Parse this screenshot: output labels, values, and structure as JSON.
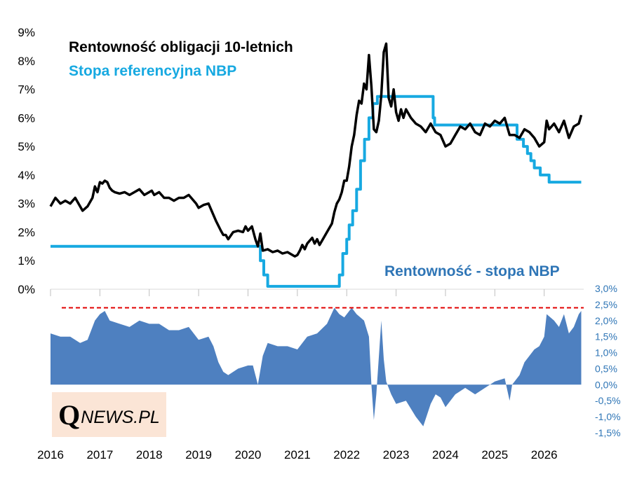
{
  "chart_data": [
    {
      "type": "line",
      "title_lines": [
        "Rentowność obligacji 10-letnich",
        "Stopa referencyjna NBP"
      ],
      "y_ticks": [
        "0%",
        "1%",
        "2%",
        "3%",
        "4%",
        "5%",
        "6%",
        "7%",
        "8%",
        "9%"
      ],
      "ylim": [
        0,
        9
      ],
      "x_ticks": [
        "2016",
        "2017",
        "2018",
        "2019",
        "2020",
        "2021",
        "2022",
        "2023",
        "2024",
        "2025",
        "2026"
      ],
      "xlim": [
        2016.0,
        2026.8
      ],
      "series": [
        {
          "name": "Rentowność obligacji 10-letnich",
          "color": "#000000",
          "points": [
            [
              2016.0,
              2.9
            ],
            [
              2016.1,
              3.2
            ],
            [
              2016.2,
              3.0
            ],
            [
              2016.3,
              3.1
            ],
            [
              2016.4,
              3.0
            ],
            [
              2016.5,
              3.2
            ],
            [
              2016.6,
              2.9
            ],
            [
              2016.65,
              2.75
            ],
            [
              2016.75,
              2.9
            ],
            [
              2016.85,
              3.2
            ],
            [
              2016.9,
              3.6
            ],
            [
              2016.95,
              3.4
            ],
            [
              2017.0,
              3.75
            ],
            [
              2017.05,
              3.7
            ],
            [
              2017.1,
              3.8
            ],
            [
              2017.15,
              3.75
            ],
            [
              2017.2,
              3.55
            ],
            [
              2017.25,
              3.45
            ],
            [
              2017.3,
              3.4
            ],
            [
              2017.4,
              3.35
            ],
            [
              2017.5,
              3.4
            ],
            [
              2017.6,
              3.3
            ],
            [
              2017.7,
              3.4
            ],
            [
              2017.8,
              3.5
            ],
            [
              2017.9,
              3.3
            ],
            [
              2017.95,
              3.35
            ],
            [
              2018.0,
              3.4
            ],
            [
              2018.05,
              3.45
            ],
            [
              2018.1,
              3.3
            ],
            [
              2018.2,
              3.4
            ],
            [
              2018.3,
              3.2
            ],
            [
              2018.4,
              3.2
            ],
            [
              2018.5,
              3.1
            ],
            [
              2018.6,
              3.2
            ],
            [
              2018.7,
              3.2
            ],
            [
              2018.8,
              3.3
            ],
            [
              2018.9,
              3.1
            ],
            [
              2018.95,
              3.0
            ],
            [
              2019.0,
              2.85
            ],
            [
              2019.1,
              2.95
            ],
            [
              2019.2,
              3.0
            ],
            [
              2019.25,
              2.8
            ],
            [
              2019.35,
              2.4
            ],
            [
              2019.45,
              2.05
            ],
            [
              2019.5,
              1.9
            ],
            [
              2019.55,
              1.9
            ],
            [
              2019.6,
              1.75
            ],
            [
              2019.7,
              2.0
            ],
            [
              2019.8,
              2.05
            ],
            [
              2019.9,
              2.0
            ],
            [
              2019.95,
              2.2
            ],
            [
              2020.0,
              2.05
            ],
            [
              2020.08,
              2.2
            ],
            [
              2020.15,
              1.75
            ],
            [
              2020.2,
              1.5
            ],
            [
              2020.25,
              1.95
            ],
            [
              2020.3,
              1.35
            ],
            [
              2020.4,
              1.4
            ],
            [
              2020.5,
              1.3
            ],
            [
              2020.6,
              1.35
            ],
            [
              2020.7,
              1.25
            ],
            [
              2020.8,
              1.3
            ],
            [
              2020.9,
              1.2
            ],
            [
              2020.95,
              1.15
            ],
            [
              2021.0,
              1.2
            ],
            [
              2021.05,
              1.35
            ],
            [
              2021.1,
              1.55
            ],
            [
              2021.15,
              1.4
            ],
            [
              2021.2,
              1.6
            ],
            [
              2021.3,
              1.8
            ],
            [
              2021.35,
              1.6
            ],
            [
              2021.4,
              1.75
            ],
            [
              2021.45,
              1.55
            ],
            [
              2021.5,
              1.7
            ],
            [
              2021.6,
              2.0
            ],
            [
              2021.7,
              2.3
            ],
            [
              2021.75,
              2.7
            ],
            [
              2021.8,
              3.0
            ],
            [
              2021.85,
              3.15
            ],
            [
              2021.9,
              3.4
            ],
            [
              2021.95,
              3.8
            ],
            [
              2022.0,
              3.8
            ],
            [
              2022.05,
              4.3
            ],
            [
              2022.1,
              5.0
            ],
            [
              2022.15,
              5.4
            ],
            [
              2022.2,
              6.1
            ],
            [
              2022.25,
              6.6
            ],
            [
              2022.3,
              6.5
            ],
            [
              2022.35,
              7.2
            ],
            [
              2022.4,
              7.0
            ],
            [
              2022.45,
              8.2
            ],
            [
              2022.5,
              7.1
            ],
            [
              2022.55,
              5.6
            ],
            [
              2022.6,
              5.5
            ],
            [
              2022.65,
              5.9
            ],
            [
              2022.7,
              6.8
            ],
            [
              2022.75,
              8.3
            ],
            [
              2022.8,
              8.6
            ],
            [
              2022.85,
              6.7
            ],
            [
              2022.9,
              6.4
            ],
            [
              2022.95,
              7.0
            ],
            [
              2023.0,
              6.2
            ],
            [
              2023.05,
              5.9
            ],
            [
              2023.1,
              6.3
            ],
            [
              2023.15,
              6.0
            ],
            [
              2023.2,
              6.3
            ],
            [
              2023.3,
              6.0
            ],
            [
              2023.4,
              5.8
            ],
            [
              2023.5,
              5.7
            ],
            [
              2023.6,
              5.5
            ],
            [
              2023.7,
              5.8
            ],
            [
              2023.8,
              5.5
            ],
            [
              2023.9,
              5.4
            ],
            [
              2024.0,
              5.0
            ],
            [
              2024.1,
              5.1
            ],
            [
              2024.2,
              5.4
            ],
            [
              2024.3,
              5.7
            ],
            [
              2024.4,
              5.6
            ],
            [
              2024.5,
              5.8
            ],
            [
              2024.6,
              5.5
            ],
            [
              2024.7,
              5.4
            ],
            [
              2024.8,
              5.8
            ],
            [
              2024.9,
              5.7
            ],
            [
              2025.0,
              5.9
            ],
            [
              2025.1,
              5.8
            ],
            [
              2025.2,
              6.0
            ],
            [
              2025.25,
              5.7
            ],
            [
              2025.3,
              5.4
            ],
            [
              2025.4,
              5.4
            ],
            [
              2025.5,
              5.3
            ],
            [
              2025.6,
              5.6
            ],
            [
              2025.7,
              5.5
            ],
            [
              2025.8,
              5.3
            ],
            [
              2025.9,
              5.0
            ],
            [
              2026.0,
              5.15
            ],
            [
              2026.05,
              5.9
            ],
            [
              2026.1,
              5.6
            ],
            [
              2026.2,
              5.8
            ],
            [
              2026.3,
              5.5
            ],
            [
              2026.4,
              5.9
            ],
            [
              2026.5,
              5.3
            ],
            [
              2026.6,
              5.7
            ],
            [
              2026.7,
              5.8
            ],
            [
              2026.75,
              6.1
            ]
          ]
        },
        {
          "name": "Stopa referencyjna NBP",
          "color": "#17a9e1",
          "step": true,
          "points": [
            [
              2016.0,
              1.5
            ],
            [
              2020.2,
              1.5
            ],
            [
              2020.25,
              1.0
            ],
            [
              2020.32,
              0.5
            ],
            [
              2020.4,
              0.1
            ],
            [
              2021.8,
              0.1
            ],
            [
              2021.85,
              0.5
            ],
            [
              2021.92,
              1.25
            ],
            [
              2022.0,
              1.75
            ],
            [
              2022.05,
              2.25
            ],
            [
              2022.12,
              2.75
            ],
            [
              2022.2,
              3.5
            ],
            [
              2022.28,
              4.5
            ],
            [
              2022.36,
              5.25
            ],
            [
              2022.45,
              6.0
            ],
            [
              2022.53,
              6.5
            ],
            [
              2022.62,
              6.75
            ],
            [
              2023.7,
              6.75
            ],
            [
              2023.75,
              6.0
            ],
            [
              2023.78,
              5.75
            ],
            [
              2025.35,
              5.75
            ],
            [
              2025.45,
              5.25
            ],
            [
              2025.58,
              5.0
            ],
            [
              2025.66,
              4.75
            ],
            [
              2025.73,
              4.5
            ],
            [
              2025.8,
              4.25
            ],
            [
              2025.92,
              4.0
            ],
            [
              2026.1,
              3.75
            ],
            [
              2026.75,
              3.75
            ]
          ]
        }
      ]
    },
    {
      "type": "area",
      "title": "Rentowność - stopa NBP",
      "y_ticks": [
        "3,0%",
        "2,5%",
        "2,0%",
        "1,5%",
        "1,0%",
        "0,5%",
        "0,0%",
        "-0,5%",
        "-1,0%",
        "-1,5%"
      ],
      "ylim": [
        -1.5,
        3.0
      ],
      "threshold": 2.4,
      "threshold_color": "#e00000",
      "series": [
        {
          "name": "Rentowność - stopa NBP",
          "color": "#4e80c0",
          "points": [
            [
              2016.0,
              1.6
            ],
            [
              2016.2,
              1.5
            ],
            [
              2016.4,
              1.5
            ],
            [
              2016.6,
              1.3
            ],
            [
              2016.75,
              1.4
            ],
            [
              2016.9,
              2.0
            ],
            [
              2017.0,
              2.2
            ],
            [
              2017.1,
              2.3
            ],
            [
              2017.2,
              2.0
            ],
            [
              2017.4,
              1.9
            ],
            [
              2017.6,
              1.8
            ],
            [
              2017.8,
              2.0
            ],
            [
              2018.0,
              1.9
            ],
            [
              2018.2,
              1.9
            ],
            [
              2018.4,
              1.7
            ],
            [
              2018.6,
              1.7
            ],
            [
              2018.8,
              1.8
            ],
            [
              2019.0,
              1.4
            ],
            [
              2019.2,
              1.5
            ],
            [
              2019.3,
              1.2
            ],
            [
              2019.4,
              0.7
            ],
            [
              2019.5,
              0.4
            ],
            [
              2019.6,
              0.3
            ],
            [
              2019.8,
              0.5
            ],
            [
              2020.0,
              0.6
            ],
            [
              2020.1,
              0.6
            ],
            [
              2020.2,
              0.0
            ],
            [
              2020.3,
              0.9
            ],
            [
              2020.4,
              1.3
            ],
            [
              2020.6,
              1.2
            ],
            [
              2020.8,
              1.2
            ],
            [
              2021.0,
              1.1
            ],
            [
              2021.2,
              1.5
            ],
            [
              2021.4,
              1.6
            ],
            [
              2021.6,
              1.9
            ],
            [
              2021.75,
              2.4
            ],
            [
              2021.85,
              2.2
            ],
            [
              2021.95,
              2.1
            ],
            [
              2022.1,
              2.4
            ],
            [
              2022.2,
              2.2
            ],
            [
              2022.35,
              2.0
            ],
            [
              2022.45,
              1.5
            ],
            [
              2022.5,
              0.0
            ],
            [
              2022.55,
              -1.1
            ],
            [
              2022.6,
              -0.3
            ],
            [
              2022.7,
              2.0
            ],
            [
              2022.75,
              0.8
            ],
            [
              2022.8,
              0.1
            ],
            [
              2022.9,
              -0.3
            ],
            [
              2023.0,
              -0.6
            ],
            [
              2023.2,
              -0.5
            ],
            [
              2023.4,
              -1.0
            ],
            [
              2023.55,
              -1.3
            ],
            [
              2023.7,
              -0.6
            ],
            [
              2023.8,
              -0.3
            ],
            [
              2023.9,
              -0.4
            ],
            [
              2024.0,
              -0.7
            ],
            [
              2024.2,
              -0.3
            ],
            [
              2024.4,
              -0.1
            ],
            [
              2024.6,
              -0.3
            ],
            [
              2024.8,
              -0.1
            ],
            [
              2025.0,
              0.1
            ],
            [
              2025.2,
              0.2
            ],
            [
              2025.3,
              -0.5
            ],
            [
              2025.35,
              0.0
            ],
            [
              2025.5,
              0.3
            ],
            [
              2025.6,
              0.7
            ],
            [
              2025.8,
              1.1
            ],
            [
              2025.9,
              1.2
            ],
            [
              2026.0,
              1.5
            ],
            [
              2026.05,
              2.2
            ],
            [
              2026.2,
              2.0
            ],
            [
              2026.3,
              1.8
            ],
            [
              2026.4,
              2.2
            ],
            [
              2026.5,
              1.6
            ],
            [
              2026.6,
              1.8
            ],
            [
              2026.7,
              2.2
            ],
            [
              2026.75,
              2.3
            ]
          ]
        }
      ]
    }
  ],
  "logo": {
    "letter": "Q",
    "text": "NEWS.PL",
    "background": "#fbe5d6"
  }
}
